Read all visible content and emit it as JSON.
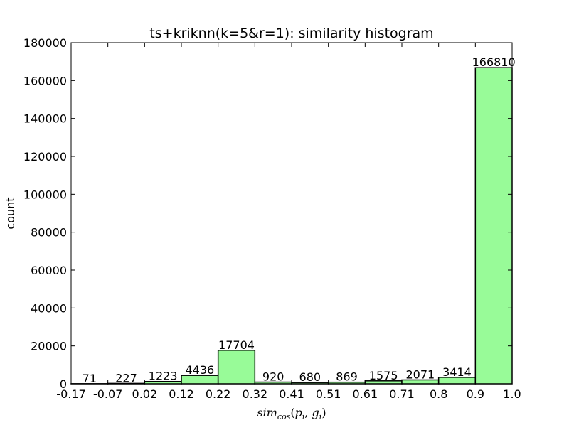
{
  "chart_data": {
    "type": "bar",
    "title": "ts+kriknn(k=5&r=1): similarity histogram",
    "xlabel": {
      "base": "sim",
      "subscript": "cos",
      "args_open": "(",
      "p": "p",
      "p_sub": "i",
      "comma": ", ",
      "g": "g",
      "g_sub": "i",
      "args_close": ")"
    },
    "ylabel": "count",
    "ylim": [
      0,
      180000
    ],
    "yticks": [
      "0",
      "20000",
      "40000",
      "60000",
      "80000",
      "100000",
      "120000",
      "140000",
      "160000",
      "180000"
    ],
    "xticks": [
      "-0.17",
      "-0.07",
      "0.02",
      "0.12",
      "0.22",
      "0.32",
      "0.41",
      "0.51",
      "0.61",
      "0.71",
      "0.8",
      "0.9",
      "1.0"
    ],
    "values": [
      71,
      227,
      1223,
      4436,
      17704,
      920,
      680,
      869,
      1575,
      2071,
      3414,
      166810
    ],
    "value_labels": [
      "71",
      "227",
      "1223",
      "4436",
      "17704",
      "920",
      "680",
      "869",
      "1575",
      "2071",
      "3414",
      "166810"
    ],
    "bar_color": "#98fb98",
    "edge_color": "#000000",
    "grid": false
  }
}
